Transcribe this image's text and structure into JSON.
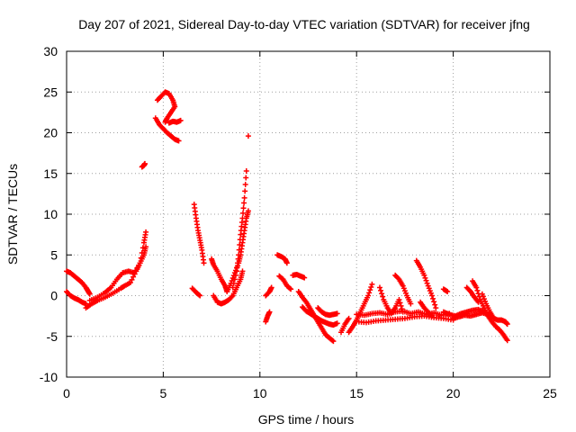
{
  "chart_data": {
    "type": "scatter",
    "title": "Day 207 of 2021, Sidereal Day-to-day VTEC variation (SDTVAR) for receiver jfng",
    "xlabel": "GPS time / hours",
    "ylabel": "SDTVAR / TECUs",
    "xlim": [
      0,
      25
    ],
    "ylim": [
      -10,
      30
    ],
    "x_ticks": [
      0,
      5,
      10,
      15,
      20,
      25
    ],
    "y_ticks": [
      -10,
      -5,
      0,
      5,
      10,
      15,
      20,
      25,
      30
    ],
    "grid": true,
    "marker": "+",
    "series": [
      {
        "name": "SDTVAR",
        "color": "#ff0000",
        "segments": [
          {
            "x": [
              0.0,
              0.2,
              0.4,
              0.6,
              0.8,
              1.0,
              1.1,
              1.2
            ],
            "y": [
              3.0,
              2.8,
              2.4,
              2.0,
              1.6,
              1.0,
              0.6,
              0.2
            ]
          },
          {
            "x": [
              0.0,
              0.2,
              0.4,
              0.6,
              0.8,
              1.0
            ],
            "y": [
              0.5,
              0.0,
              -0.3,
              -0.5,
              -0.8,
              -1.0
            ]
          },
          {
            "x": [
              1.0,
              1.3,
              1.6,
              2.0,
              2.4,
              2.8,
              3.0,
              3.3,
              3.6,
              3.8,
              4.0,
              4.1
            ],
            "y": [
              -1.5,
              -1.0,
              -0.6,
              -0.2,
              0.3,
              0.9,
              1.2,
              1.6,
              3.0,
              4.0,
              5.0,
              6.0
            ]
          },
          {
            "x": [
              1.2,
              1.6,
              2.0,
              2.3,
              2.6,
              2.9,
              3.2,
              3.5,
              3.8,
              4.0,
              4.1
            ],
            "y": [
              -0.6,
              -0.2,
              0.4,
              1.0,
              2.0,
              2.8,
              3.0,
              2.8,
              4.0,
              6.5,
              7.8
            ]
          },
          {
            "x": [
              3.9,
              4.0,
              4.05
            ],
            "y": [
              15.8,
              16.0,
              16.2
            ]
          },
          {
            "x": [
              4.7,
              4.9,
              5.1,
              5.3,
              5.5,
              5.6,
              5.4,
              5.2,
              5.1
            ],
            "y": [
              24.0,
              24.5,
              25.0,
              24.8,
              24.0,
              23.2,
              22.5,
              21.8,
              21.3
            ]
          },
          {
            "x": [
              4.6,
              4.8,
              5.0,
              5.2,
              5.4,
              5.6,
              5.8
            ],
            "y": [
              21.8,
              21.0,
              20.5,
              20.0,
              19.6,
              19.2,
              19.0
            ]
          },
          {
            "x": [
              5.3,
              5.5,
              5.7,
              5.9
            ],
            "y": [
              21.2,
              21.4,
              21.3,
              21.5
            ]
          },
          {
            "x": [
              6.6,
              6.7,
              6.8,
              6.9,
              7.0,
              7.1
            ],
            "y": [
              11.2,
              9.5,
              8.0,
              6.8,
              5.6,
              4.0
            ]
          },
          {
            "x": [
              6.5,
              6.7,
              6.9
            ],
            "y": [
              0.9,
              0.4,
              0.0
            ]
          },
          {
            "x": [
              7.5,
              7.6,
              7.8,
              8.0,
              8.2,
              8.3
            ],
            "y": [
              4.5,
              3.8,
              3.0,
              2.0,
              1.2,
              0.5
            ]
          },
          {
            "x": [
              7.6,
              7.8,
              8.0,
              8.2,
              8.4,
              8.6,
              8.8,
              9.0,
              9.1
            ],
            "y": [
              0.0,
              -0.8,
              -1.0,
              -0.8,
              -0.5,
              0.0,
              1.0,
              2.0,
              3.0
            ]
          },
          {
            "x": [
              8.3,
              8.5,
              8.7,
              8.9,
              9.0,
              9.1,
              9.2,
              9.3,
              9.4
            ],
            "y": [
              0.5,
              1.5,
              2.8,
              4.0,
              5.0,
              6.5,
              8.0,
              9.5,
              10.4
            ]
          },
          {
            "x": [
              8.6,
              8.8,
              8.9,
              9.0,
              9.1,
              9.2,
              9.3
            ],
            "y": [
              1.0,
              3.0,
              5.0,
              7.5,
              9.5,
              12.0,
              15.3
            ]
          },
          {
            "x": [
              9.4
            ],
            "y": [
              19.6
            ]
          },
          {
            "x": [
              10.3,
              10.4,
              10.5
            ],
            "y": [
              -3.2,
              -2.5,
              -2.0
            ]
          },
          {
            "x": [
              10.3,
              10.5,
              10.6
            ],
            "y": [
              0.0,
              0.5,
              1.0
            ]
          },
          {
            "x": [
              10.9,
              11.1,
              11.3,
              11.4
            ],
            "y": [
              5.0,
              4.8,
              4.5,
              4.0
            ]
          },
          {
            "x": [
              11.0,
              11.2,
              11.4,
              11.6
            ],
            "y": [
              2.4,
              2.0,
              1.2,
              0.8
            ]
          },
          {
            "x": [
              11.7,
              11.9,
              12.1,
              12.3
            ],
            "y": [
              2.5,
              2.6,
              2.4,
              2.2
            ]
          },
          {
            "x": [
              12.0,
              12.2,
              12.4,
              12.6,
              12.8,
              13.0,
              13.2,
              13.4,
              13.6,
              13.8
            ],
            "y": [
              0.5,
              -0.2,
              -0.8,
              -1.6,
              -2.4,
              -3.2,
              -4.0,
              -4.8,
              -5.2,
              -5.6
            ]
          },
          {
            "x": [
              12.2,
              12.4,
              12.6,
              12.8,
              13.0,
              13.2,
              13.4,
              13.6,
              13.8,
              14.0
            ],
            "y": [
              -1.4,
              -1.9,
              -2.2,
              -2.5,
              -2.8,
              -3.1,
              -3.3,
              -3.5,
              -3.6,
              -3.4
            ]
          },
          {
            "x": [
              13.0,
              13.2,
              13.4,
              13.6,
              13.8,
              14.0
            ],
            "y": [
              -1.5,
              -2.0,
              -2.3,
              -2.4,
              -2.3,
              -2.2
            ]
          },
          {
            "x": [
              14.2,
              14.4,
              14.6
            ],
            "y": [
              -4.5,
              -3.5,
              -2.8
            ]
          },
          {
            "x": [
              14.6,
              14.8,
              15.0,
              15.2,
              15.4,
              15.6,
              15.8
            ],
            "y": [
              -4.5,
              -3.8,
              -3.0,
              -2.0,
              -1.0,
              0.0,
              1.4
            ]
          },
          {
            "x": [
              15.0,
              15.5,
              16.0,
              16.5,
              17.0,
              17.5,
              18.0,
              18.5,
              19.0,
              19.5,
              20.0
            ],
            "y": [
              -3.2,
              -3.3,
              -3.1,
              -3.0,
              -2.9,
              -2.8,
              -2.6,
              -2.5,
              -2.7,
              -2.8,
              -3.0
            ]
          },
          {
            "x": [
              15.0,
              15.4,
              15.8,
              16.2,
              16.6,
              17.0,
              17.4,
              17.8,
              18.2,
              18.6,
              19.0,
              19.4,
              19.8
            ],
            "y": [
              -2.3,
              -2.4,
              -2.2,
              -2.1,
              -2.3,
              -2.0,
              -1.9,
              -2.2,
              -2.0,
              -2.3,
              -2.1,
              -2.4,
              -2.2
            ]
          },
          {
            "x": [
              16.2,
              16.4,
              16.6,
              16.8,
              17.0,
              17.2,
              17.4
            ],
            "y": [
              1.0,
              -0.5,
              -1.5,
              -2.2,
              -1.5,
              -0.5,
              -2.0
            ]
          },
          {
            "x": [
              17.0,
              17.2,
              17.4,
              17.6,
              17.8
            ],
            "y": [
              2.5,
              2.0,
              1.2,
              0.0,
              -1.0
            ]
          },
          {
            "x": [
              18.1,
              18.3,
              18.5,
              18.7,
              18.9,
              19.1
            ],
            "y": [
              4.3,
              3.5,
              2.5,
              1.2,
              0.0,
              -1.5
            ]
          },
          {
            "x": [
              18.3,
              18.5,
              18.7,
              18.9
            ],
            "y": [
              -0.8,
              -1.5,
              -2.0,
              -2.5
            ]
          },
          {
            "x": [
              19.5,
              19.7
            ],
            "y": [
              0.8,
              0.5
            ]
          },
          {
            "x": [
              19.5,
              19.8,
              20.1,
              20.4,
              20.7,
              21.0,
              21.3,
              21.6,
              21.9
            ],
            "y": [
              -2.0,
              -2.3,
              -2.5,
              -2.2,
              -2.0,
              -1.8,
              -1.7,
              -2.0,
              -2.4
            ]
          },
          {
            "x": [
              20.0,
              20.3,
              20.6,
              20.9,
              21.2,
              21.5,
              21.8,
              22.0
            ],
            "y": [
              -2.8,
              -2.6,
              -2.4,
              -2.5,
              -2.3,
              -2.1,
              -2.3,
              -2.6
            ]
          },
          {
            "x": [
              20.7,
              20.9,
              21.1,
              21.3
            ],
            "y": [
              1.0,
              0.5,
              -0.2,
              -0.8
            ]
          },
          {
            "x": [
              21.0,
              21.2,
              21.4,
              21.6,
              21.8,
              22.0,
              22.2,
              22.4,
              22.6,
              22.8
            ],
            "y": [
              1.8,
              1.0,
              -0.5,
              -1.5,
              -2.5,
              -3.2,
              -3.8,
              -4.2,
              -4.8,
              -5.5
            ]
          },
          {
            "x": [
              21.5,
              21.7,
              21.9,
              22.1,
              22.3,
              22.5,
              22.7,
              22.8
            ],
            "y": [
              0.2,
              -1.0,
              -2.0,
              -2.8,
              -3.0,
              -3.0,
              -3.2,
              -3.5
            ]
          }
        ]
      }
    ]
  }
}
